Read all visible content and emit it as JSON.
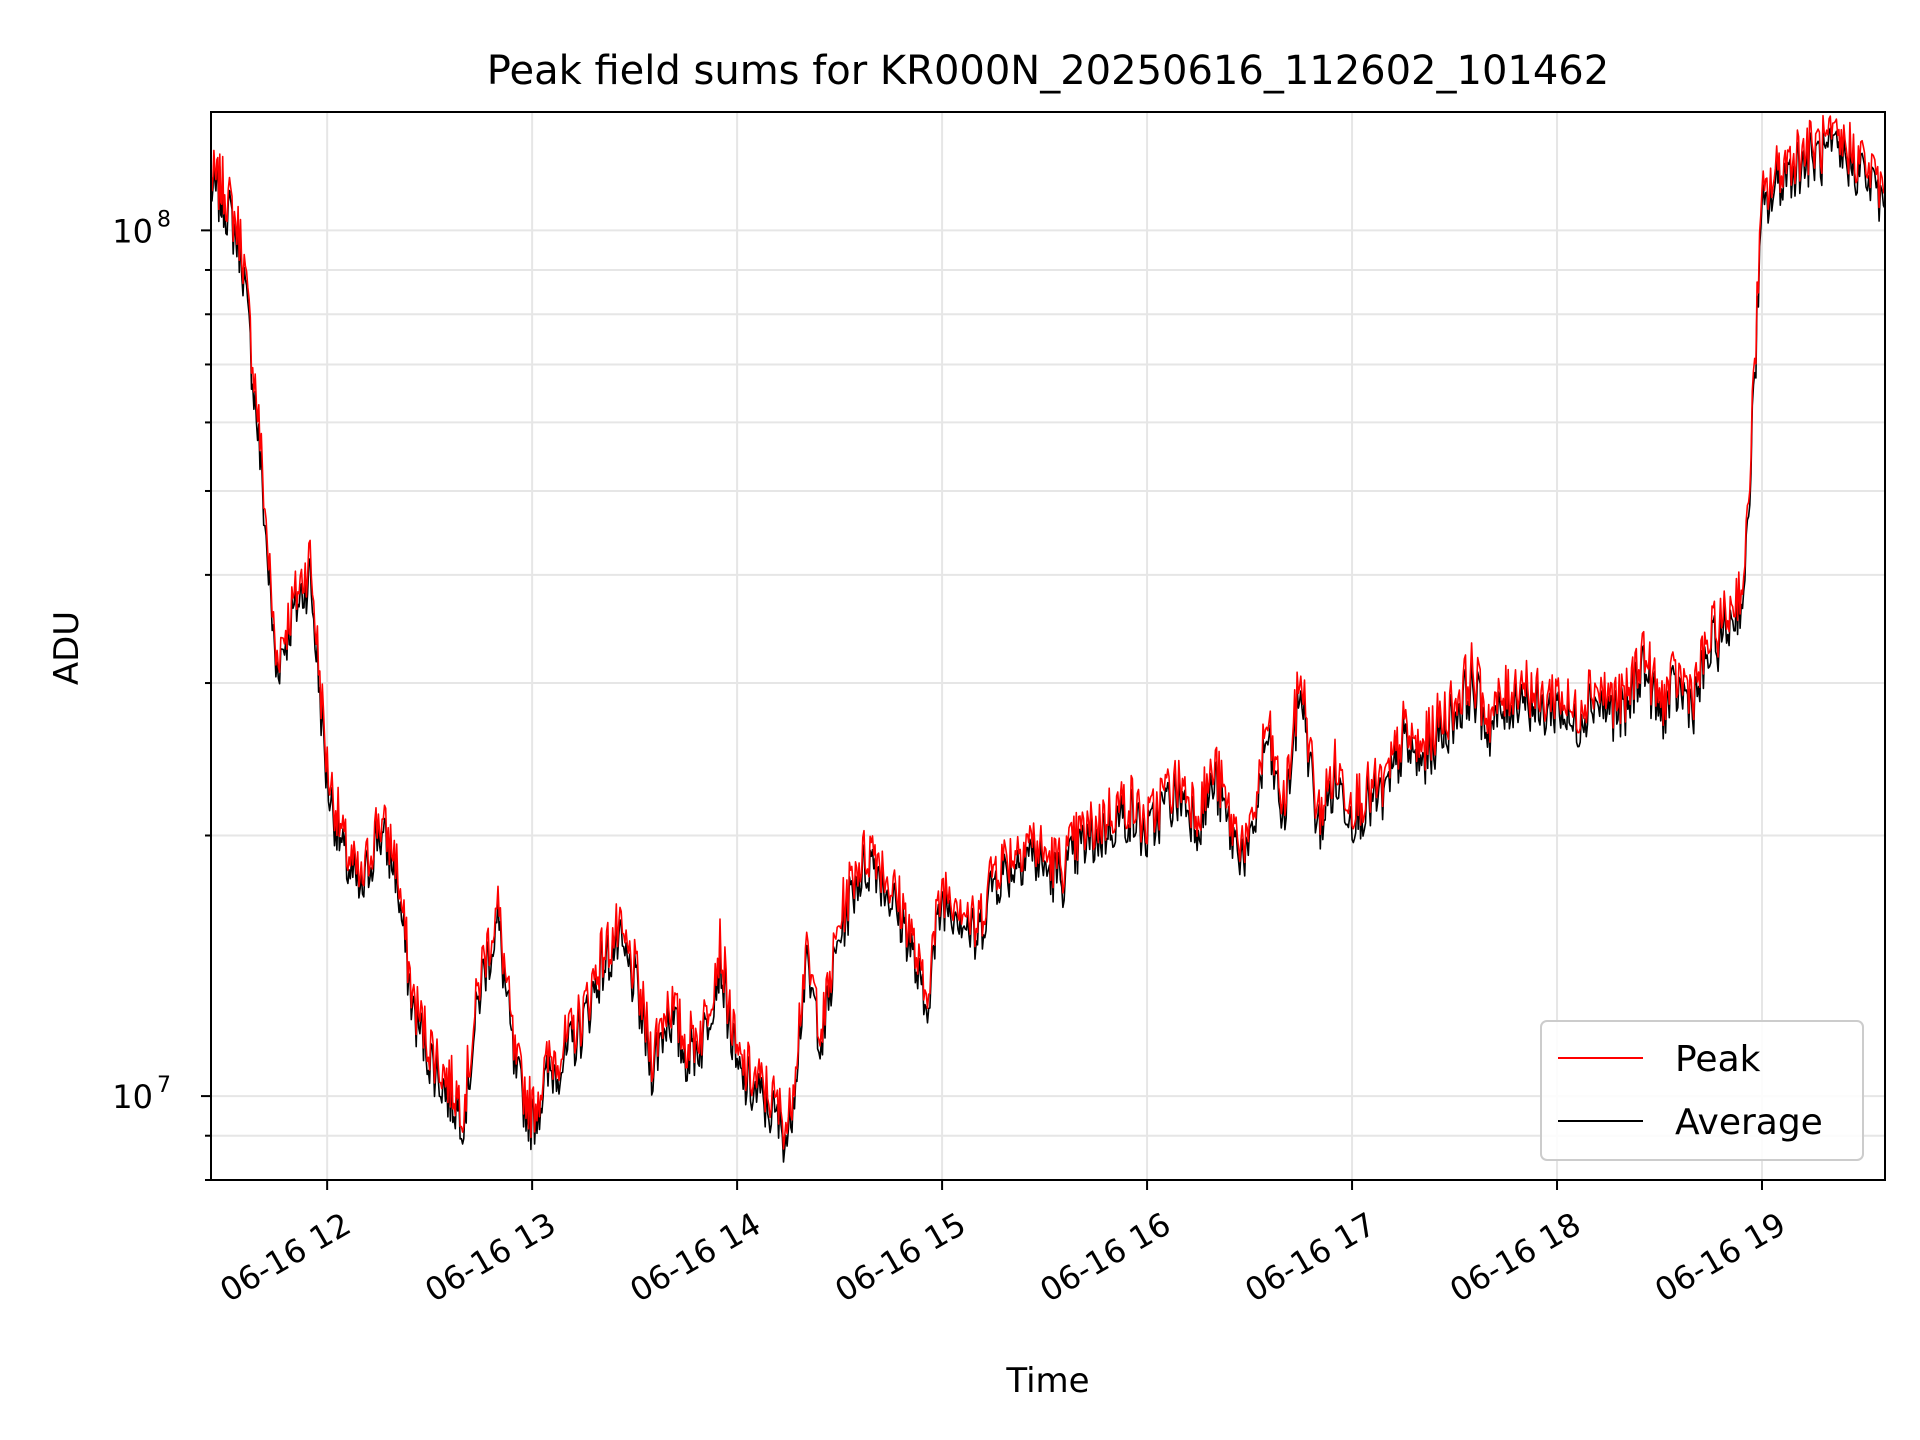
{
  "chart_data": {
    "type": "line",
    "title": "Peak field sums for KR000N_20250616_112602_101462",
    "xlabel": "Time",
    "ylabel": "ADU",
    "x_scale": "time",
    "y_scale": "log",
    "xlim": [
      "2025-06-16T11:26",
      "2025-06-16T19:36"
    ],
    "ylim": [
      8000000,
      137000000
    ],
    "grid": true,
    "legend": "lower-right",
    "x_ticks": [
      {
        "label": "06-16 12",
        "value": "2025-06-16T12:00"
      },
      {
        "label": "06-16 13",
        "value": "2025-06-16T13:00"
      },
      {
        "label": "06-16 14",
        "value": "2025-06-16T14:00"
      },
      {
        "label": "06-16 15",
        "value": "2025-06-16T15:00"
      },
      {
        "label": "06-16 16",
        "value": "2025-06-16T16:00"
      },
      {
        "label": "06-16 17",
        "value": "2025-06-16T17:00"
      },
      {
        "label": "06-16 18",
        "value": "2025-06-16T18:00"
      },
      {
        "label": "06-16 19",
        "value": "2025-06-16T19:00"
      }
    ],
    "y_ticks": [
      {
        "label": "10^7",
        "value": 10000000
      },
      {
        "label": "10^8",
        "value": 100000000
      }
    ],
    "series": [
      {
        "name": "Peak",
        "color": "#ff0000",
        "x": [
          "2025-06-16T11:26",
          "2025-06-16T11:30",
          "2025-06-16T11:35",
          "2025-06-16T11:40",
          "2025-06-16T11:45",
          "2025-06-16T11:50",
          "2025-06-16T11:55",
          "2025-06-16T12:00",
          "2025-06-16T12:05",
          "2025-06-16T12:10",
          "2025-06-16T12:15",
          "2025-06-16T12:20",
          "2025-06-16T12:25",
          "2025-06-16T12:30",
          "2025-06-16T12:35",
          "2025-06-16T12:40",
          "2025-06-16T12:45",
          "2025-06-16T12:50",
          "2025-06-16T12:55",
          "2025-06-16T13:00",
          "2025-06-16T13:05",
          "2025-06-16T13:10",
          "2025-06-16T13:15",
          "2025-06-16T13:20",
          "2025-06-16T13:25",
          "2025-06-16T13:30",
          "2025-06-16T13:35",
          "2025-06-16T13:40",
          "2025-06-16T13:45",
          "2025-06-16T13:50",
          "2025-06-16T13:55",
          "2025-06-16T14:00",
          "2025-06-16T14:05",
          "2025-06-16T14:10",
          "2025-06-16T14:15",
          "2025-06-16T14:20",
          "2025-06-16T14:25",
          "2025-06-16T14:30",
          "2025-06-16T14:35",
          "2025-06-16T14:40",
          "2025-06-16T14:45",
          "2025-06-16T14:50",
          "2025-06-16T14:55",
          "2025-06-16T15:00",
          "2025-06-16T15:05",
          "2025-06-16T15:10",
          "2025-06-16T15:15",
          "2025-06-16T15:20",
          "2025-06-16T15:25",
          "2025-06-16T15:30",
          "2025-06-16T15:35",
          "2025-06-16T15:40",
          "2025-06-16T15:45",
          "2025-06-16T15:50",
          "2025-06-16T15:55",
          "2025-06-16T16:00",
          "2025-06-16T16:05",
          "2025-06-16T16:10",
          "2025-06-16T16:15",
          "2025-06-16T16:20",
          "2025-06-16T16:25",
          "2025-06-16T16:30",
          "2025-06-16T16:35",
          "2025-06-16T16:40",
          "2025-06-16T16:45",
          "2025-06-16T16:50",
          "2025-06-16T16:55",
          "2025-06-16T17:00",
          "2025-06-16T17:05",
          "2025-06-16T17:10",
          "2025-06-16T17:15",
          "2025-06-16T17:20",
          "2025-06-16T17:25",
          "2025-06-16T17:30",
          "2025-06-16T17:35",
          "2025-06-16T17:40",
          "2025-06-16T17:45",
          "2025-06-16T17:50",
          "2025-06-16T17:55",
          "2025-06-16T18:00",
          "2025-06-16T18:05",
          "2025-06-16T18:10",
          "2025-06-16T18:15",
          "2025-06-16T18:20",
          "2025-06-16T18:25",
          "2025-06-16T18:30",
          "2025-06-16T18:35",
          "2025-06-16T18:40",
          "2025-06-16T18:45",
          "2025-06-16T18:50",
          "2025-06-16T18:55",
          "2025-06-16T19:00",
          "2025-06-16T19:05",
          "2025-06-16T19:10",
          "2025-06-16T19:15",
          "2025-06-16T19:20",
          "2025-06-16T19:25",
          "2025-06-16T19:30",
          "2025-06-16T19:36"
        ],
        "values": [
          115000000,
          112000000,
          97000000,
          60000000,
          32000000,
          37000000,
          42000000,
          24000000,
          19500000,
          17500000,
          21000000,
          19000000,
          13000000,
          11500000,
          10500000,
          9800000,
          14000000,
          16500000,
          11000000,
          9600000,
          11000000,
          11500000,
          12500000,
          14500000,
          15500000,
          14000000,
          11200000,
          13000000,
          11500000,
          12000000,
          15000000,
          11000000,
          10500000,
          10000000,
          9200000,
          14500000,
          12000000,
          16000000,
          18500000,
          19500000,
          17500000,
          16000000,
          13000000,
          17500000,
          17000000,
          15500000,
          18500000,
          19000000,
          20000000,
          19000000,
          18500000,
          20000000,
          20500000,
          21500000,
          22000000,
          20500000,
          22500000,
          23000000,
          21500000,
          24000000,
          20500000,
          19500000,
          27000000,
          21500000,
          31000000,
          21000000,
          24000000,
          22000000,
          22500000,
          23000000,
          26500000,
          25000000,
          27000000,
          28500000,
          31000000,
          27500000,
          29000000,
          30500000,
          28500000,
          29500000,
          27500000,
          30000000,
          29000000,
          28500000,
          33000000,
          28500000,
          30500000,
          29500000,
          34000000,
          36000000,
          40000000,
          108000000,
          118000000,
          123000000,
          125000000,
          126000000,
          125000000,
          120000000,
          110000000
        ],
        "note_peaks": []
      },
      {
        "name": "Average",
        "color": "#000000",
        "x": [
          "2025-06-16T11:26",
          "2025-06-16T11:30",
          "2025-06-16T11:35",
          "2025-06-16T11:40",
          "2025-06-16T11:45",
          "2025-06-16T11:50",
          "2025-06-16T11:55",
          "2025-06-16T12:00",
          "2025-06-16T12:05",
          "2025-06-16T12:10",
          "2025-06-16T12:15",
          "2025-06-16T12:20",
          "2025-06-16T12:25",
          "2025-06-16T12:30",
          "2025-06-16T12:35",
          "2025-06-16T12:40",
          "2025-06-16T12:45",
          "2025-06-16T12:50",
          "2025-06-16T12:55",
          "2025-06-16T13:00",
          "2025-06-16T13:05",
          "2025-06-16T13:10",
          "2025-06-16T13:15",
          "2025-06-16T13:20",
          "2025-06-16T13:25",
          "2025-06-16T13:30",
          "2025-06-16T13:35",
          "2025-06-16T13:40",
          "2025-06-16T13:45",
          "2025-06-16T13:50",
          "2025-06-16T13:55",
          "2025-06-16T14:00",
          "2025-06-16T14:05",
          "2025-06-16T14:10",
          "2025-06-16T14:15",
          "2025-06-16T14:20",
          "2025-06-16T14:25",
          "2025-06-16T14:30",
          "2025-06-16T14:35",
          "2025-06-16T14:40",
          "2025-06-16T14:45",
          "2025-06-16T14:50",
          "2025-06-16T14:55",
          "2025-06-16T15:00",
          "2025-06-16T15:05",
          "2025-06-16T15:10",
          "2025-06-16T15:15",
          "2025-06-16T15:20",
          "2025-06-16T15:25",
          "2025-06-16T15:30",
          "2025-06-16T15:35",
          "2025-06-16T15:40",
          "2025-06-16T15:45",
          "2025-06-16T15:50",
          "2025-06-16T15:55",
          "2025-06-16T16:00",
          "2025-06-16T16:05",
          "2025-06-16T16:10",
          "2025-06-16T16:15",
          "2025-06-16T16:20",
          "2025-06-16T16:25",
          "2025-06-16T16:30",
          "2025-06-16T16:35",
          "2025-06-16T16:40",
          "2025-06-16T16:45",
          "2025-06-16T16:50",
          "2025-06-16T16:55",
          "2025-06-16T17:00",
          "2025-06-16T17:05",
          "2025-06-16T17:10",
          "2025-06-16T17:15",
          "2025-06-16T17:20",
          "2025-06-16T17:25",
          "2025-06-16T17:30",
          "2025-06-16T17:35",
          "2025-06-16T17:40",
          "2025-06-16T17:45",
          "2025-06-16T17:50",
          "2025-06-16T17:55",
          "2025-06-16T18:00",
          "2025-06-16T18:05",
          "2025-06-16T18:10",
          "2025-06-16T18:15",
          "2025-06-16T18:20",
          "2025-06-16T18:25",
          "2025-06-16T18:30",
          "2025-06-16T18:35",
          "2025-06-16T18:40",
          "2025-06-16T18:45",
          "2025-06-16T18:50",
          "2025-06-16T18:55",
          "2025-06-16T19:00",
          "2025-06-16T19:05",
          "2025-06-16T19:10",
          "2025-06-16T19:15",
          "2025-06-16T19:20",
          "2025-06-16T19:25",
          "2025-06-16T19:30",
          "2025-06-16T19:36"
        ],
        "values": [
          112000000,
          108000000,
          94000000,
          57000000,
          31000000,
          36000000,
          40000000,
          23000000,
          18800000,
          17000000,
          20300000,
          18300000,
          12600000,
          11100000,
          10100000,
          9500000,
          13500000,
          15900000,
          10600000,
          9300000,
          10600000,
          11100000,
          12100000,
          14000000,
          15000000,
          13500000,
          10800000,
          12500000,
          11100000,
          11600000,
          14400000,
          10600000,
          10100000,
          9600000,
          8900000,
          14000000,
          11600000,
          15400000,
          17800000,
          18800000,
          16900000,
          15400000,
          12500000,
          16900000,
          16400000,
          15000000,
          17800000,
          18300000,
          19300000,
          18300000,
          17800000,
          19300000,
          19800000,
          20700000,
          21200000,
          19800000,
          21700000,
          22200000,
          20700000,
          23100000,
          19800000,
          18800000,
          26000000,
          20700000,
          29800000,
          20200000,
          23100000,
          21200000,
          21700000,
          22200000,
          25500000,
          24100000,
          26000000,
          27500000,
          29800000,
          26500000,
          28000000,
          29400000,
          27500000,
          28400000,
          26500000,
          28900000,
          28000000,
          27500000,
          31800000,
          27500000,
          29400000,
          28400000,
          32700000,
          34700000,
          38500000,
          104000000,
          114000000,
          119000000,
          121000000,
          122000000,
          121000000,
          116000000,
          106000000
        ]
      }
    ]
  }
}
